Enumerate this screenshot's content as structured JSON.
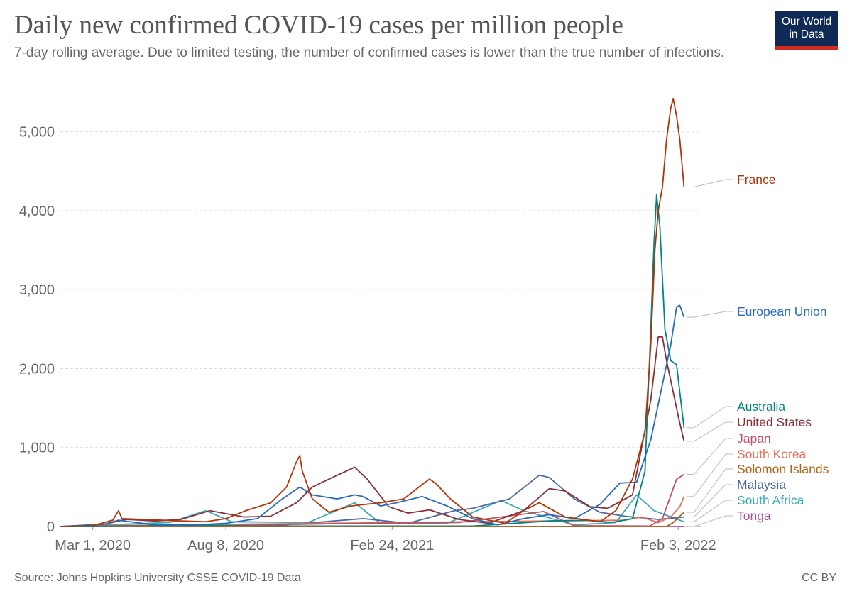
{
  "header": {
    "title": "Daily new confirmed COVID-19 cases per million people",
    "subtitle": "7-day rolling average. Due to limited testing, the number of confirmed cases is lower than the true number of infections.",
    "logo_line1": "Our World",
    "logo_line2": "in Data"
  },
  "footer": {
    "source": "Source: Johns Hopkins University CSSE COVID-19 Data",
    "license": "CC BY"
  },
  "chart_data": {
    "type": "line",
    "title": "Daily new confirmed COVID-19 cases per million people",
    "xlabel": "",
    "ylabel": "",
    "x_range": [
      "2020-01-22",
      "2022-03-03"
    ],
    "ylim": [
      0,
      5500
    ],
    "yticks": [
      0,
      1000,
      2000,
      3000,
      4000,
      5000
    ],
    "ytick_labels": [
      "0",
      "1,000",
      "2,000",
      "3,000",
      "4,000",
      "5,000"
    ],
    "xticks": [
      {
        "date": "2020-03-01",
        "label": "Mar 1, 2020"
      },
      {
        "date": "2020-08-08",
        "label": "Aug 8, 2020"
      },
      {
        "date": "2021-02-24",
        "label": "Feb 24, 2021"
      },
      {
        "date": "2022-02-03",
        "label": "Feb 3, 2022"
      }
    ],
    "grid": true,
    "legend": "right",
    "series": [
      {
        "name": "France",
        "color": "#b13507",
        "points": [
          [
            "2020-01-22",
            0
          ],
          [
            "2020-03-01",
            10
          ],
          [
            "2020-03-25",
            80
          ],
          [
            "2020-04-01",
            200
          ],
          [
            "2020-04-05",
            100
          ],
          [
            "2020-05-01",
            90
          ],
          [
            "2020-06-15",
            70
          ],
          [
            "2020-07-15",
            60
          ],
          [
            "2020-08-08",
            100
          ],
          [
            "2020-09-01",
            200
          ],
          [
            "2020-10-01",
            300
          ],
          [
            "2020-10-20",
            500
          ],
          [
            "2020-11-01",
            820
          ],
          [
            "2020-11-05",
            900
          ],
          [
            "2020-11-08",
            700
          ],
          [
            "2020-11-20",
            350
          ],
          [
            "2020-12-10",
            180
          ],
          [
            "2021-01-05",
            260
          ],
          [
            "2021-02-10",
            300
          ],
          [
            "2021-03-10",
            350
          ],
          [
            "2021-04-01",
            530
          ],
          [
            "2021-04-10",
            600
          ],
          [
            "2021-04-18",
            540
          ],
          [
            "2021-05-05",
            350
          ],
          [
            "2021-06-01",
            120
          ],
          [
            "2021-07-10",
            40
          ],
          [
            "2021-08-01",
            200
          ],
          [
            "2021-08-20",
            300
          ],
          [
            "2021-09-20",
            120
          ],
          [
            "2021-11-01",
            60
          ],
          [
            "2021-11-20",
            200
          ],
          [
            "2021-12-10",
            600
          ],
          [
            "2021-12-25",
            1200
          ],
          [
            "2022-01-01",
            2300
          ],
          [
            "2022-01-06",
            3500
          ],
          [
            "2022-01-10",
            4000
          ],
          [
            "2022-01-15",
            4300
          ],
          [
            "2022-01-20",
            4900
          ],
          [
            "2022-01-25",
            5300
          ],
          [
            "2022-01-28",
            5420
          ],
          [
            "2022-02-01",
            5200
          ],
          [
            "2022-02-05",
            4900
          ],
          [
            "2022-02-10",
            4300
          ]
        ]
      },
      {
        "name": "European Union",
        "color": "#286bbb",
        "points": [
          [
            "2020-01-22",
            0
          ],
          [
            "2020-03-15",
            30
          ],
          [
            "2020-04-01",
            80
          ],
          [
            "2020-05-15",
            20
          ],
          [
            "2020-07-01",
            20
          ],
          [
            "2020-08-08",
            40
          ],
          [
            "2020-09-15",
            100
          ],
          [
            "2020-10-15",
            350
          ],
          [
            "2020-11-05",
            500
          ],
          [
            "2020-11-20",
            400
          ],
          [
            "2020-12-20",
            350
          ],
          [
            "2021-01-10",
            400
          ],
          [
            "2021-01-20",
            380
          ],
          [
            "2021-02-10",
            260
          ],
          [
            "2021-03-01",
            300
          ],
          [
            "2021-04-01",
            380
          ],
          [
            "2021-05-01",
            260
          ],
          [
            "2021-06-01",
            100
          ],
          [
            "2021-07-01",
            20
          ],
          [
            "2021-08-01",
            100
          ],
          [
            "2021-09-01",
            150
          ],
          [
            "2021-10-01",
            100
          ],
          [
            "2021-11-01",
            280
          ],
          [
            "2021-11-25",
            550
          ],
          [
            "2021-12-15",
            560
          ],
          [
            "2022-01-01",
            1100
          ],
          [
            "2022-01-15",
            1800
          ],
          [
            "2022-01-25",
            2300
          ],
          [
            "2022-02-01",
            2780
          ],
          [
            "2022-02-05",
            2800
          ],
          [
            "2022-02-10",
            2650
          ]
        ]
      },
      {
        "name": "Australia",
        "color": "#00847e",
        "points": [
          [
            "2020-01-22",
            0
          ],
          [
            "2020-08-01",
            15
          ],
          [
            "2020-09-01",
            5
          ],
          [
            "2021-06-01",
            5
          ],
          [
            "2021-09-01",
            70
          ],
          [
            "2021-10-15",
            80
          ],
          [
            "2021-11-15",
            50
          ],
          [
            "2021-12-10",
            100
          ],
          [
            "2021-12-25",
            700
          ],
          [
            "2022-01-01",
            2500
          ],
          [
            "2022-01-05",
            3600
          ],
          [
            "2022-01-08",
            4200
          ],
          [
            "2022-01-12",
            3800
          ],
          [
            "2022-01-18",
            2500
          ],
          [
            "2022-01-25",
            2100
          ],
          [
            "2022-02-01",
            2050
          ],
          [
            "2022-02-05",
            1700
          ],
          [
            "2022-02-10",
            1250
          ]
        ]
      },
      {
        "name": "United States",
        "color": "#883039",
        "points": [
          [
            "2020-01-22",
            0
          ],
          [
            "2020-03-15",
            30
          ],
          [
            "2020-04-10",
            90
          ],
          [
            "2020-05-15",
            70
          ],
          [
            "2020-06-15",
            90
          ],
          [
            "2020-07-20",
            200
          ],
          [
            "2020-08-30",
            120
          ],
          [
            "2020-10-01",
            130
          ],
          [
            "2020-11-01",
            300
          ],
          [
            "2020-11-20",
            500
          ],
          [
            "2020-12-20",
            650
          ],
          [
            "2021-01-10",
            750
          ],
          [
            "2021-01-25",
            600
          ],
          [
            "2021-02-20",
            250
          ],
          [
            "2021-03-15",
            170
          ],
          [
            "2021-04-10",
            210
          ],
          [
            "2021-05-15",
            90
          ],
          [
            "2021-06-20",
            40
          ],
          [
            "2021-08-01",
            200
          ],
          [
            "2021-09-01",
            480
          ],
          [
            "2021-09-20",
            450
          ],
          [
            "2021-10-20",
            250
          ],
          [
            "2021-11-10",
            230
          ],
          [
            "2021-12-10",
            400
          ],
          [
            "2022-01-01",
            1600
          ],
          [
            "2022-01-10",
            2400
          ],
          [
            "2022-01-15",
            2400
          ],
          [
            "2022-01-20",
            2100
          ],
          [
            "2022-01-28",
            1700
          ],
          [
            "2022-02-03",
            1400
          ],
          [
            "2022-02-10",
            1080
          ]
        ]
      },
      {
        "name": "Japan",
        "color": "#c15065",
        "points": [
          [
            "2020-01-22",
            0
          ],
          [
            "2020-04-15",
            5
          ],
          [
            "2020-08-01",
            10
          ],
          [
            "2021-01-10",
            40
          ],
          [
            "2021-05-15",
            50
          ],
          [
            "2021-08-25",
            190
          ],
          [
            "2021-10-01",
            10
          ],
          [
            "2021-12-31",
            5
          ],
          [
            "2022-01-15",
            100
          ],
          [
            "2022-02-01",
            600
          ],
          [
            "2022-02-10",
            660
          ]
        ]
      },
      {
        "name": "South Korea",
        "color": "#e56e5a",
        "points": [
          [
            "2020-01-22",
            0
          ],
          [
            "2020-03-01",
            10
          ],
          [
            "2021-12-01",
            80
          ],
          [
            "2021-12-20",
            120
          ],
          [
            "2022-01-10",
            50
          ],
          [
            "2022-01-25",
            120
          ],
          [
            "2022-02-05",
            250
          ],
          [
            "2022-02-10",
            380
          ]
        ]
      },
      {
        "name": "Solomon Islands",
        "color": "#b16214",
        "points": [
          [
            "2020-01-22",
            0
          ],
          [
            "2022-01-20",
            0
          ],
          [
            "2022-01-28",
            50
          ],
          [
            "2022-02-05",
            130
          ],
          [
            "2022-02-10",
            180
          ]
        ]
      },
      {
        "name": "Malaysia",
        "color": "#4c6a9c",
        "points": [
          [
            "2020-01-22",
            0
          ],
          [
            "2020-10-01",
            5
          ],
          [
            "2021-01-20",
            100
          ],
          [
            "2021-03-15",
            40
          ],
          [
            "2021-05-10",
            200
          ],
          [
            "2021-06-01",
            230
          ],
          [
            "2021-07-15",
            350
          ],
          [
            "2021-08-20",
            650
          ],
          [
            "2021-09-01",
            620
          ],
          [
            "2021-10-01",
            350
          ],
          [
            "2021-11-01",
            180
          ],
          [
            "2021-12-01",
            130
          ],
          [
            "2022-01-10",
            90
          ],
          [
            "2022-02-10",
            120
          ]
        ]
      },
      {
        "name": "South Africa",
        "color": "#38aaba",
        "points": [
          [
            "2020-01-22",
            0
          ],
          [
            "2020-06-01",
            50
          ],
          [
            "2020-07-15",
            200
          ],
          [
            "2020-08-15",
            60
          ],
          [
            "2020-11-15",
            50
          ],
          [
            "2021-01-10",
            300
          ],
          [
            "2021-02-10",
            40
          ],
          [
            "2021-05-01",
            40
          ],
          [
            "2021-07-05",
            330
          ],
          [
            "2021-08-01",
            200
          ],
          [
            "2021-10-01",
            20
          ],
          [
            "2021-11-20",
            50
          ],
          [
            "2021-12-15",
            400
          ],
          [
            "2022-01-05",
            200
          ],
          [
            "2022-02-10",
            60
          ]
        ]
      },
      {
        "name": "Tonga",
        "color": "#a2559c",
        "points": [
          [
            "2020-01-22",
            0
          ],
          [
            "2022-02-10",
            0
          ]
        ]
      }
    ]
  }
}
